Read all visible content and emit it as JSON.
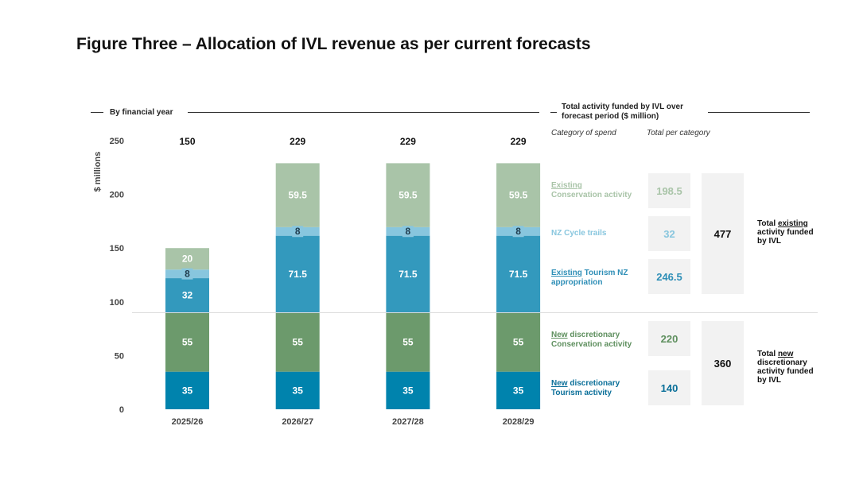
{
  "title": "Figure Three – Allocation of IVL revenue as per current forecasts",
  "left_header": "By financial year",
  "right_header": "Total activity funded by IVL over forecast period ($ million)",
  "col_header_category": "Category of spend",
  "col_header_total": "Total per category",
  "chart_data": {
    "type": "bar",
    "stacked": true,
    "categories": [
      "2025/26",
      "2026/27",
      "2027/28",
      "2028/29"
    ],
    "totals": [
      "150",
      "229",
      "229",
      "229"
    ],
    "ylabel": "$ millions",
    "ylim": [
      0,
      250
    ],
    "yticks": [
      0,
      50,
      100,
      150,
      200,
      250
    ],
    "grid": false,
    "series": [
      {
        "key": "new_tourism",
        "values": [
          35,
          35,
          35,
          35
        ],
        "color": "#0083ad",
        "labels": [
          "35",
          "35",
          "35",
          "35"
        ]
      },
      {
        "key": "new_conservation",
        "values": [
          55,
          55,
          55,
          55
        ],
        "color": "#6c9a6c",
        "labels": [
          "55",
          "55",
          "55",
          "55"
        ]
      },
      {
        "key": "existing_tourism",
        "values": [
          32,
          71.5,
          71.5,
          71.5
        ],
        "color": "#3399bd",
        "labels": [
          "32",
          "71.5",
          "71.5",
          "71.5"
        ]
      },
      {
        "key": "cycle_trails",
        "values": [
          8,
          8,
          8,
          8
        ],
        "color": "#88c6de",
        "labels": [
          "8",
          "8",
          "8",
          "8"
        ]
      },
      {
        "key": "existing_conservation",
        "values": [
          20,
          59.5,
          59.5,
          59.5
        ],
        "color": "#a9c4a8",
        "labels": [
          "20",
          "59.5",
          "59.5",
          "59.5"
        ]
      }
    ]
  },
  "legend": {
    "existing_conservation": {
      "u": "Existing",
      "rest": "Conservation activity",
      "total": "198.5",
      "color": "#a9c4a8"
    },
    "cycle_trails": {
      "u": "",
      "rest": "NZ Cycle trails",
      "total": "32",
      "color": "#88c6de"
    },
    "existing_tourism": {
      "u": "Existing",
      "rest": " Tourism NZ appropriation",
      "total": "246.5",
      "color": "#2f8fb7"
    },
    "new_conservation": {
      "u": "New",
      "rest": " discretionary Conservation activity",
      "total": "220",
      "color": "#5e8f5e"
    },
    "new_tourism": {
      "u": "New",
      "rest": " discretionary Tourism activity",
      "total": "140",
      "color": "#0a6f99"
    }
  },
  "group_totals": {
    "existing": {
      "value": "477",
      "pre": "Total ",
      "u": "existing",
      "post": " activity funded by IVL"
    },
    "new": {
      "value": "360",
      "pre": "Total ",
      "u": "new",
      "post": " discretionary activity funded by IVL"
    }
  }
}
